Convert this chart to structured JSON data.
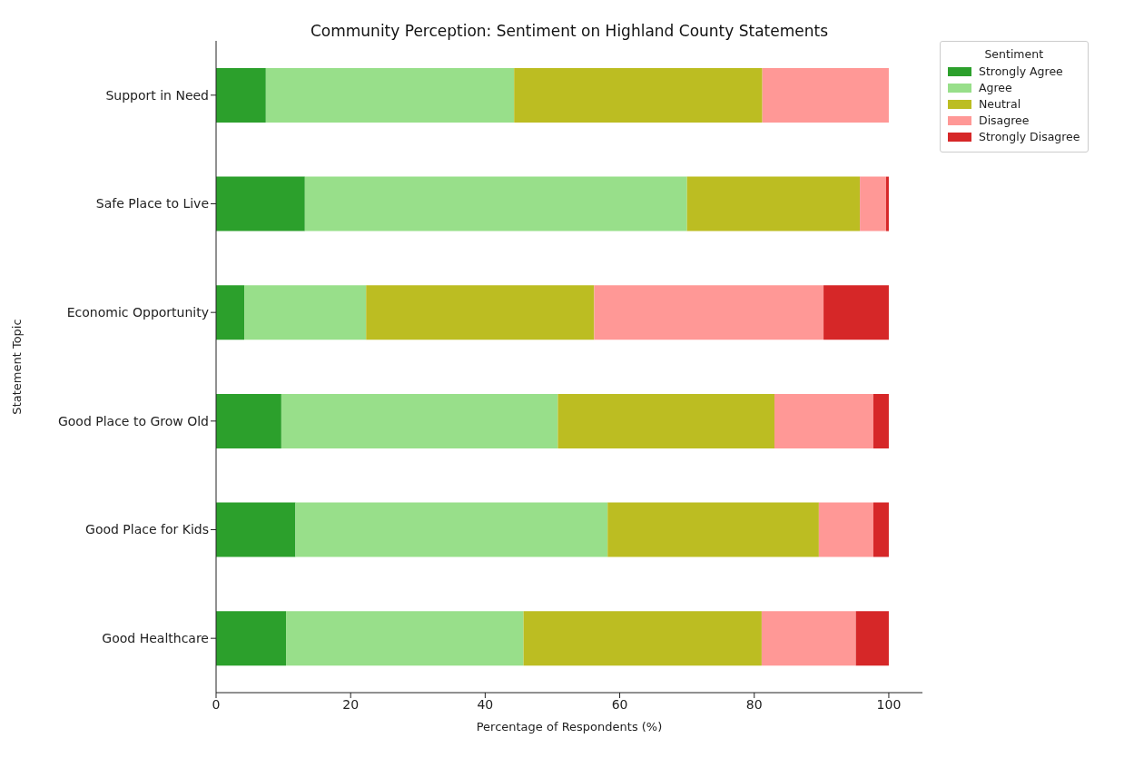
{
  "chart_data": {
    "type": "bar",
    "orientation": "horizontal",
    "stacked": true,
    "title": "Community Perception: Sentiment on Highland County Statements",
    "xlabel": "Percentage of Respondents (%)",
    "ylabel": "Statement Topic",
    "legend_title": "Sentiment",
    "categories": [
      "Support in Need",
      "Safe Place to Live",
      "Economic Opportunity",
      "Good Place to Grow Old",
      "Good Place for Kids",
      "Good Healthcare"
    ],
    "series": [
      {
        "name": "Strongly Agree",
        "color": "#2ca02c",
        "values": [
          7.4,
          13.2,
          4.2,
          9.7,
          11.8,
          10.4
        ]
      },
      {
        "name": "Agree",
        "color": "#98df8a",
        "values": [
          36.9,
          56.8,
          18.1,
          41.1,
          46.4,
          35.3
        ]
      },
      {
        "name": "Neutral",
        "color": "#bcbd22",
        "values": [
          36.9,
          25.7,
          33.9,
          32.2,
          31.4,
          35.4
        ]
      },
      {
        "name": "Disagree",
        "color": "#ff9896",
        "values": [
          18.8,
          3.9,
          34.1,
          14.7,
          8.1,
          14.0
        ]
      },
      {
        "name": "Strongly Disagree",
        "color": "#d62728",
        "values": [
          0,
          0.4,
          9.7,
          2.3,
          2.3,
          4.9
        ]
      }
    ],
    "xlim": [
      0,
      105
    ],
    "xticks": [
      0,
      20,
      40,
      60,
      80,
      100
    ],
    "grid": false,
    "legend": "top right"
  }
}
